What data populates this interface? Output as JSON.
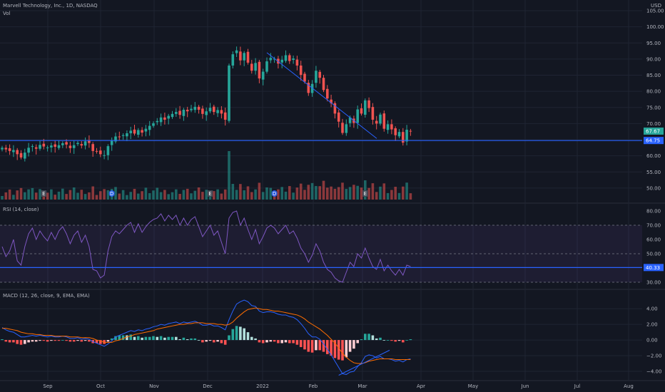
{
  "header": {
    "symbol_title": "Marvell Technology, Inc., 1D, NASDAQ",
    "vol_label": "Vol",
    "currency": "USD"
  },
  "colors": {
    "up": "#26a69a",
    "down": "#ef5350",
    "trendline": "#2962ff",
    "rsi_line": "#7e57c2",
    "macd_line": "#2962ff",
    "signal_line": "#ff6d00",
    "background": "#131722",
    "grid": "#1f2433"
  },
  "chart_data": [
    {
      "type": "candlestick",
      "title": "Marvell Technology, Inc., 1D, NASDAQ",
      "x_ticks": [
        "Sep",
        "Oct",
        "Nov",
        "Dec",
        "2022",
        "Feb",
        "Mar",
        "Apr",
        "May",
        "Jun",
        "Jul",
        "Aug"
      ],
      "y_ticks": [
        50,
        55,
        60,
        65,
        70,
        75,
        80,
        85,
        90,
        95,
        100,
        105
      ],
      "y_tick_labels": [
        "50.00",
        "55.00",
        "60.00",
        "65.00",
        "70.00",
        "75.00",
        "80.00",
        "85.00",
        "90.00",
        "95.00",
        "100.00",
        "105.00"
      ],
      "ylim": [
        46,
        107
      ],
      "last_price": "67.67",
      "horizontal_level": "64.75",
      "close_series": [
        62.5,
        62.0,
        61.5,
        61.8,
        60.5,
        59.5,
        61.0,
        62.5,
        63.0,
        62.2,
        63.4,
        62.9,
        62.6,
        63.2,
        62.8,
        63.3,
        63.9,
        63.5,
        62.4,
        63.3,
        64.0,
        63.2,
        64.5,
        64.0,
        61.5,
        61.3,
        60.5,
        60.2,
        63.0,
        64.8,
        66.0,
        65.8,
        66.4,
        67.0,
        67.8,
        66.9,
        68.0,
        67.2,
        68.4,
        69.3,
        70.1,
        70.8,
        71.9,
        71.2,
        72.4,
        73.0,
        73.6,
        72.7,
        74.3,
        73.8,
        74.6,
        75.2,
        74.3,
        73.0,
        73.8,
        74.9,
        73.6,
        74.2,
        73.1,
        71.2,
        88.0,
        91.5,
        92.7,
        89.6,
        91.9,
        88.9,
        86.4,
        88.8,
        84.0,
        86.1,
        89.3,
        90.4,
        90.1,
        88.6,
        89.8,
        91.2,
        89.4,
        90.2,
        88.0,
        85.1,
        83.0,
        79.5,
        82.3,
        86.4,
        84.2,
        80.4,
        77.8,
        76.3,
        73.1,
        70.6,
        67.1,
        69.8,
        71.9,
        70.2,
        74.4,
        73.1,
        77.2,
        74.8,
        71.2,
        70.0,
        72.8,
        68.4,
        69.8,
        68.2,
        66.4,
        67.4,
        64.1,
        68.1,
        67.7
      ],
      "annotations": [
        "E",
        "D",
        "E",
        "D",
        "E"
      ]
    },
    {
      "type": "bar",
      "title": "Vol",
      "note": "volume histogram, no axis"
    },
    {
      "type": "line",
      "title": "RSI (14, close)",
      "y_ticks": [
        30,
        40,
        50,
        60,
        70,
        80
      ],
      "y_tick_labels": [
        "30.00",
        "40.00",
        "50.00",
        "60.00",
        "70.00",
        "80.00"
      ],
      "ylim": [
        26,
        84
      ],
      "band": [
        30,
        70
      ],
      "last_value": "40.33",
      "values": [
        55,
        48,
        52,
        60,
        45,
        42,
        55,
        64,
        68,
        60,
        66,
        62,
        59,
        65,
        60,
        66,
        69,
        64,
        57,
        63,
        66,
        58,
        63,
        55,
        39,
        38,
        33,
        35,
        52,
        62,
        66,
        64,
        67,
        70,
        72,
        65,
        71,
        65,
        69,
        72,
        74,
        75,
        78,
        73,
        77,
        74,
        77,
        70,
        75,
        70,
        74,
        76,
        69,
        62,
        66,
        70,
        63,
        66,
        58,
        50,
        75,
        79,
        80,
        70,
        75,
        67,
        60,
        67,
        57,
        62,
        68,
        70,
        68,
        64,
        67,
        70,
        64,
        66,
        61,
        54,
        50,
        44,
        49,
        57,
        52,
        44,
        39,
        37,
        33,
        31,
        30,
        37,
        44,
        41,
        50,
        47,
        54,
        47,
        41,
        39,
        46,
        38,
        42,
        38,
        35,
        39,
        35,
        42,
        41
      ]
    },
    {
      "type": "line",
      "title": "MACD (12, 26, close, 9, EMA, EMA)",
      "y_ticks": [
        -4,
        -2,
        0,
        2,
        4
      ],
      "y_tick_labels": [
        "−4.00",
        "−2.00",
        "0.00",
        "2.00",
        "4.00"
      ],
      "ylim": [
        -5,
        6.2
      ],
      "series": [
        {
          "role": "macd",
          "values": [
            1.6,
            1.3,
            1.1,
            1.0,
            0.7,
            0.4,
            0.4,
            0.5,
            0.6,
            0.5,
            0.6,
            0.5,
            0.4,
            0.5,
            0.4,
            0.4,
            0.5,
            0.4,
            0.2,
            0.2,
            0.3,
            0.1,
            0.2,
            0.1,
            -0.2,
            -0.4,
            -0.6,
            -0.8,
            -0.5,
            -0.1,
            0.4,
            0.6,
            0.8,
            1.0,
            1.2,
            1.1,
            1.3,
            1.2,
            1.4,
            1.5,
            1.7,
            1.8,
            2.0,
            1.9,
            2.1,
            2.2,
            2.3,
            2.1,
            2.3,
            2.2,
            2.3,
            2.4,
            2.2,
            1.9,
            1.9,
            2.0,
            1.8,
            1.8,
            1.6,
            1.3,
            2.6,
            3.7,
            4.6,
            4.9,
            5.1,
            4.9,
            4.4,
            4.3,
            3.7,
            3.5,
            3.6,
            3.6,
            3.5,
            3.3,
            3.2,
            3.2,
            3.0,
            2.9,
            2.6,
            2.1,
            1.5,
            0.8,
            0.4,
            0.4,
            0.1,
            -0.5,
            -1.2,
            -1.9,
            -2.7,
            -3.5,
            -4.3,
            -4.4,
            -4.1,
            -4.0,
            -3.4,
            -2.9,
            -2.1,
            -1.9,
            -2.0,
            -2.3,
            -2.1,
            -2.4,
            -2.4,
            -2.5,
            -2.7,
            -2.6,
            -2.8,
            -2.5,
            -2.4
          ]
        },
        {
          "role": "signal",
          "values": [
            1.5,
            1.5,
            1.4,
            1.3,
            1.2,
            1.0,
            0.9,
            0.8,
            0.8,
            0.7,
            0.7,
            0.6,
            0.6,
            0.6,
            0.5,
            0.5,
            0.5,
            0.5,
            0.4,
            0.4,
            0.4,
            0.3,
            0.3,
            0.3,
            0.2,
            0.0,
            -0.1,
            -0.3,
            -0.3,
            -0.3,
            -0.1,
            0.0,
            0.2,
            0.4,
            0.5,
            0.7,
            0.8,
            0.9,
            1.0,
            1.1,
            1.2,
            1.4,
            1.5,
            1.6,
            1.7,
            1.8,
            1.9,
            2.0,
            2.0,
            2.1,
            2.1,
            2.2,
            2.2,
            2.2,
            2.1,
            2.1,
            2.1,
            2.0,
            2.0,
            1.9,
            2.0,
            2.3,
            2.8,
            3.2,
            3.6,
            3.9,
            4.0,
            4.1,
            4.0,
            3.9,
            3.9,
            3.8,
            3.7,
            3.7,
            3.6,
            3.5,
            3.4,
            3.3,
            3.2,
            3.0,
            2.7,
            2.3,
            2.0,
            1.7,
            1.4,
            1.0,
            0.6,
            0.1,
            -0.4,
            -1.0,
            -1.7,
            -2.2,
            -2.6,
            -2.9,
            -3.0,
            -3.0,
            -2.9,
            -2.7,
            -2.6,
            -2.5,
            -2.4,
            -2.4,
            -2.4,
            -2.4,
            -2.5,
            -2.5,
            -2.5,
            -2.5,
            -2.5
          ]
        }
      ]
    }
  ]
}
